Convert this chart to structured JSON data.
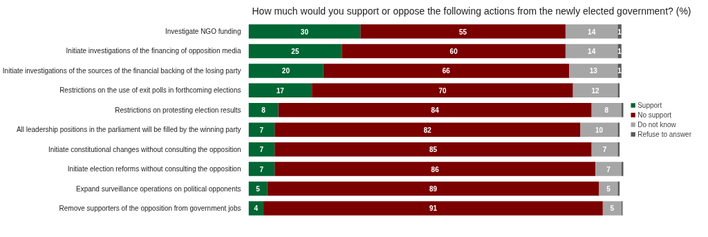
{
  "chart_data": {
    "type": "bar",
    "orientation": "horizontal",
    "stacked": true,
    "title": "How much would you support or oppose the following actions from the newly elected government? (%)",
    "categories": [
      "Investigate NGO funding",
      "Initiate investigations of the financing of opposition media",
      "Initiate investigations of the sources of the financial backing of the losing party",
      "Restrictions on the use of exit polls in forthcoming elections",
      "Restrictions on protesting election results",
      "All leadership positions in the parliament will be filled by the winning party",
      "Initiate constitutional changes without consulting the opposition",
      "Initiate election reforms without consulting the opposition",
      "Expand surveillance operations on political opponents",
      "Remove supporters of the opposition from government jobs"
    ],
    "series": [
      {
        "name": "Support",
        "color": "#006633",
        "values": [
          30,
          25,
          20,
          17,
          8,
          7,
          7,
          7,
          5,
          4
        ],
        "value_labels": [
          "30",
          "25",
          "20",
          "17",
          "8",
          "7",
          "7",
          "7",
          "5",
          "4"
        ]
      },
      {
        "name": "No support",
        "color": "#7b0000",
        "values": [
          55,
          60,
          66,
          70,
          84,
          82,
          85,
          86,
          89,
          91
        ],
        "value_labels": [
          "55",
          "60",
          "66",
          "70",
          "84",
          "82",
          "85",
          "86",
          "89",
          "91"
        ]
      },
      {
        "name": "Do not know",
        "color": "#a6a6a6",
        "values": [
          14,
          14,
          13,
          12,
          8,
          10,
          7,
          7,
          5,
          5
        ],
        "value_labels": [
          "14",
          "14",
          "13",
          "12",
          "8",
          "10",
          "7",
          "7",
          "5",
          "5"
        ]
      },
      {
        "name": "Refuse to answer",
        "color": "#595959",
        "values": [
          1,
          1,
          1,
          0.5,
          0.5,
          0.5,
          0.5,
          0.5,
          0.5,
          0.3
        ],
        "value_labels": [
          "1",
          "1",
          "1",
          null,
          null,
          null,
          null,
          null,
          null,
          null
        ]
      }
    ],
    "tick_labels": "y",
    "grid": false,
    "legend": "right"
  }
}
